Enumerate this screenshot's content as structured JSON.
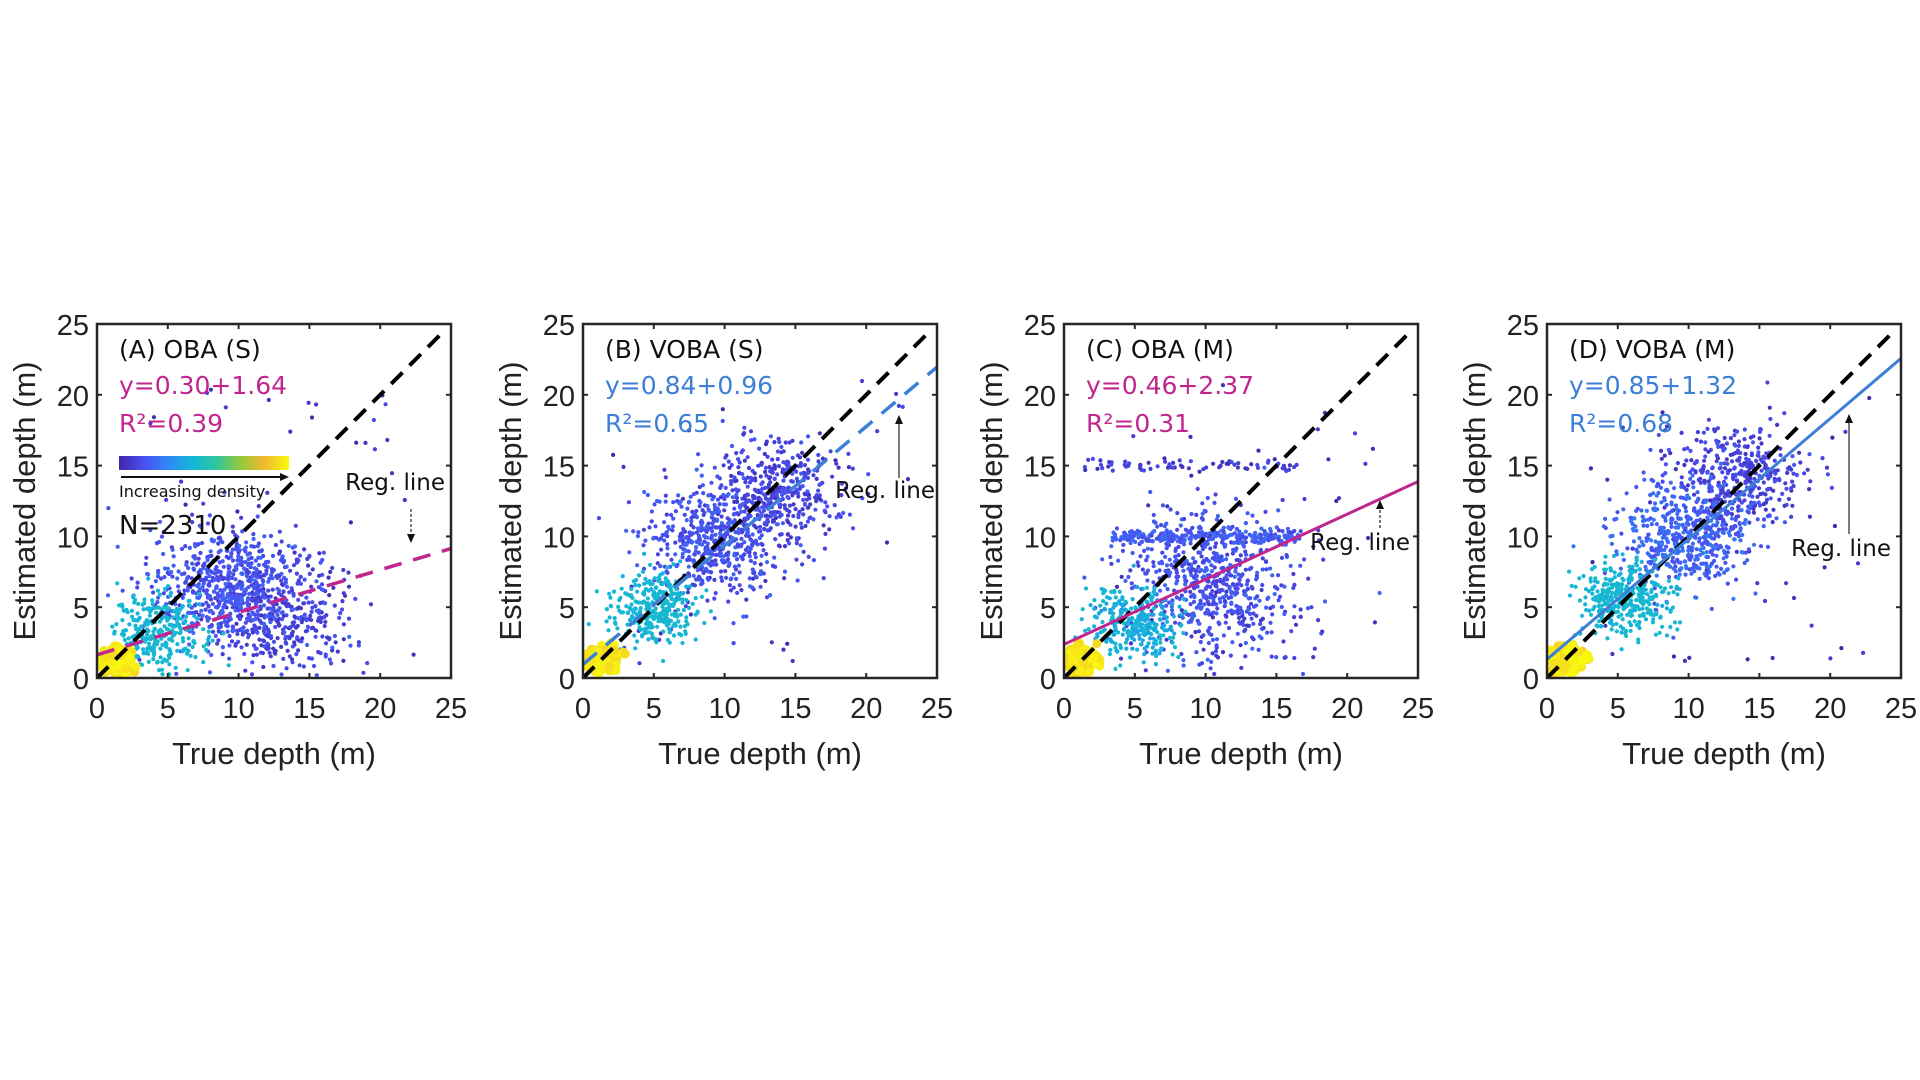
{
  "chart_data": [
    {
      "type": "scatter",
      "panel_label": "(A) OBA (S)",
      "xlabel": "True depth (m)",
      "ylabel": "Estimated depth (m)",
      "xlim": [
        0,
        25
      ],
      "ylim": [
        0,
        25
      ],
      "xticks": [
        "0",
        "5",
        "10",
        "15",
        "20",
        "25"
      ],
      "yticks": [
        "0",
        "5",
        "10",
        "15",
        "20",
        "25"
      ],
      "equation": "y=0.30+1.64",
      "r2_label": "R²=0.39",
      "regression": {
        "slope": 0.3,
        "intercept": 1.64,
        "style": "dashed",
        "color": "#c0268e"
      },
      "identity_line": {
        "slope": 1,
        "intercept": 0,
        "style": "dashed",
        "color": "#000000"
      },
      "annotation": "Reg. line",
      "n_label": "N=2310",
      "legend": {
        "label": "Increasing density",
        "colormap": [
          "#3e26a8",
          "#4a4ff0",
          "#2e87f7",
          "#13b6d9",
          "#2fc6a0",
          "#93c93b",
          "#f2b92f",
          "#f9fb0e"
        ]
      },
      "density_clusters": [
        {
          "x": 1.2,
          "y": 1.2,
          "spread": 0.6,
          "weight": 0.12,
          "density": 1.0
        },
        {
          "x": 4.5,
          "y": 3.2,
          "spread": 1.6,
          "weight": 0.2,
          "density": 0.45
        },
        {
          "x": 9,
          "y": 6.5,
          "spread": 2.6,
          "weight": 0.4,
          "density": 0.1
        },
        {
          "x": 13,
          "y": 4.5,
          "spread": 2.6,
          "weight": 0.28,
          "density": 0.05
        }
      ],
      "n_points": 2310
    },
    {
      "type": "scatter",
      "panel_label": "(B) VOBA (S)",
      "xlabel": "True depth (m)",
      "ylabel": "Estimated depth (m)",
      "xlim": [
        0,
        25
      ],
      "ylim": [
        0,
        25
      ],
      "xticks": [
        "0",
        "5",
        "10",
        "15",
        "20",
        "25"
      ],
      "yticks": [
        "0",
        "5",
        "10",
        "15",
        "20",
        "25"
      ],
      "equation": "y=0.84+0.96",
      "r2_label": "R²=0.65",
      "regression": {
        "slope": 0.84,
        "intercept": 0.96,
        "style": "dashed",
        "color": "#3d7fd6"
      },
      "identity_line": {
        "slope": 1,
        "intercept": 0,
        "style": "dashed",
        "color": "#000000"
      },
      "annotation": "Reg. line",
      "density_clusters": [
        {
          "x": 1.3,
          "y": 1.3,
          "spread": 0.6,
          "weight": 0.12,
          "density": 1.0
        },
        {
          "x": 5,
          "y": 5,
          "spread": 1.5,
          "weight": 0.22,
          "density": 0.45
        },
        {
          "x": 9,
          "y": 9.5,
          "spread": 2.4,
          "weight": 0.36,
          "density": 0.1
        },
        {
          "x": 13.5,
          "y": 13,
          "spread": 2.4,
          "weight": 0.3,
          "density": 0.05
        }
      ],
      "n_points": 2310
    },
    {
      "type": "scatter",
      "panel_label": "(C) OBA (M)",
      "xlabel": "True depth (m)",
      "ylabel": "Estimated depth (m)",
      "xlim": [
        0,
        25
      ],
      "ylim": [
        0,
        25
      ],
      "xticks": [
        "0",
        "5",
        "10",
        "15",
        "20",
        "25"
      ],
      "yticks": [
        "0",
        "5",
        "10",
        "15",
        "20",
        "25"
      ],
      "equation": "y=0.46+2.37",
      "r2_label": "R²=0.31",
      "regression": {
        "slope": 0.46,
        "intercept": 2.37,
        "style": "solid",
        "color": "#c0268e"
      },
      "identity_line": {
        "slope": 1,
        "intercept": 0,
        "style": "dashed",
        "color": "#000000"
      },
      "annotation": "Reg. line",
      "density_clusters": [
        {
          "x": 1.2,
          "y": 1.2,
          "spread": 0.6,
          "weight": 0.12,
          "density": 1.0
        },
        {
          "x": 5,
          "y": 3.8,
          "spread": 1.6,
          "weight": 0.2,
          "density": 0.4
        },
        {
          "x": 10,
          "y": 7,
          "spread": 3.0,
          "weight": 0.38,
          "density": 0.1
        },
        {
          "x": 10,
          "y": 10,
          "spread": 3.5,
          "weight": 0.18,
          "density": 0.12,
          "band": true
        },
        {
          "x": 9,
          "y": 15,
          "spread": 4.0,
          "weight": 0.05,
          "density": 0.02,
          "band": true
        },
        {
          "x": 12,
          "y": 4,
          "spread": 3.0,
          "weight": 0.07,
          "density": 0.05
        }
      ],
      "n_points": 2310
    },
    {
      "type": "scatter",
      "panel_label": "(D) VOBA (M)",
      "xlabel": "True depth (m)",
      "ylabel": "Estimated depth (m)",
      "xlim": [
        0,
        25
      ],
      "ylim": [
        0,
        25
      ],
      "xticks": [
        "0",
        "5",
        "10",
        "15",
        "20",
        "25"
      ],
      "yticks": [
        "0",
        "5",
        "10",
        "15",
        "20",
        "25"
      ],
      "equation": "y=0.85+1.32",
      "r2_label": "R²=0.68",
      "regression": {
        "slope": 0.85,
        "intercept": 1.32,
        "style": "solid",
        "color": "#3d7fd6"
      },
      "identity_line": {
        "slope": 1,
        "intercept": 0,
        "style": "dashed",
        "color": "#000000"
      },
      "annotation": "Reg. line",
      "density_clusters": [
        {
          "x": 1.3,
          "y": 1.3,
          "spread": 0.6,
          "weight": 0.12,
          "density": 1.0
        },
        {
          "x": 5.5,
          "y": 5.5,
          "spread": 1.6,
          "weight": 0.24,
          "density": 0.45
        },
        {
          "x": 9.5,
          "y": 10,
          "spread": 2.4,
          "weight": 0.36,
          "density": 0.15
        },
        {
          "x": 13.5,
          "y": 14,
          "spread": 2.4,
          "weight": 0.28,
          "density": 0.05
        }
      ],
      "n_points": 2310
    }
  ]
}
